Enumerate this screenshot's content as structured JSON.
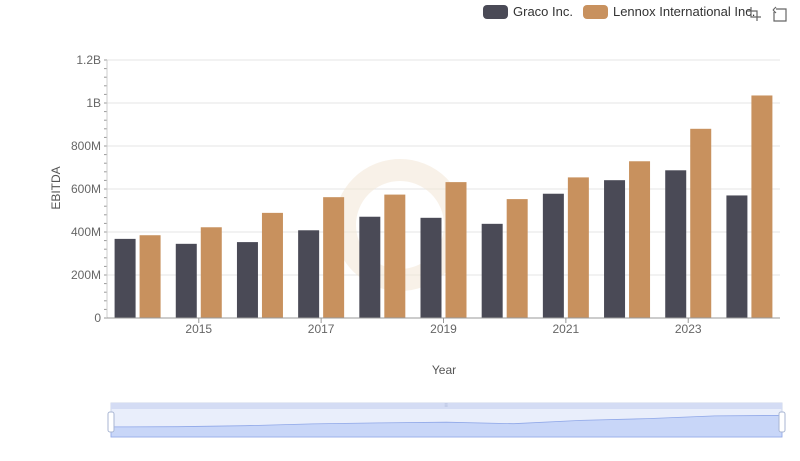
{
  "colors": {
    "graco": "#4a4a56",
    "lennox": "#c8915e",
    "grid": "#e6e6e6",
    "axis_text": "#666666",
    "zoom_fill": "#d6e1fb",
    "zoom_border": "#cfd7ea",
    "zoom_line": "#8fa7e8"
  },
  "legend": {
    "items": [
      {
        "label": "Graco Inc.",
        "color": "#4a4a56"
      },
      {
        "label": "Lennox International Inc.",
        "color": "#c8915e"
      }
    ]
  },
  "toolbox": {
    "icons": [
      "zoom-icon",
      "restore-icon"
    ]
  },
  "chart_data": {
    "type": "bar",
    "title": "",
    "xlabel": "Year",
    "ylabel": "EBITDA",
    "categories": [
      "2014",
      "2015",
      "2016",
      "2017",
      "2018",
      "2019",
      "2020",
      "2021",
      "2022",
      "2023",
      "2024"
    ],
    "x_tick_labels": [
      "2015",
      "2017",
      "2019",
      "2021",
      "2023"
    ],
    "y_tick_labels": [
      "0",
      "200M",
      "400M",
      "600M",
      "800M",
      "1B",
      "1.2B"
    ],
    "ylim": [
      0,
      1200000000
    ],
    "grid": true,
    "legend_position": "top-right",
    "series": [
      {
        "name": "Graco Inc.",
        "values": [
          368000000,
          345000000,
          353000000,
          408000000,
          471000000,
          466000000,
          438000000,
          578000000,
          641000000,
          687000000,
          570000000
        ]
      },
      {
        "name": "Lennox International Inc.",
        "values": [
          385000000,
          422000000,
          489000000,
          562000000,
          574000000,
          632000000,
          553000000,
          654000000,
          729000000,
          880000000,
          1035000000
        ]
      }
    ]
  }
}
